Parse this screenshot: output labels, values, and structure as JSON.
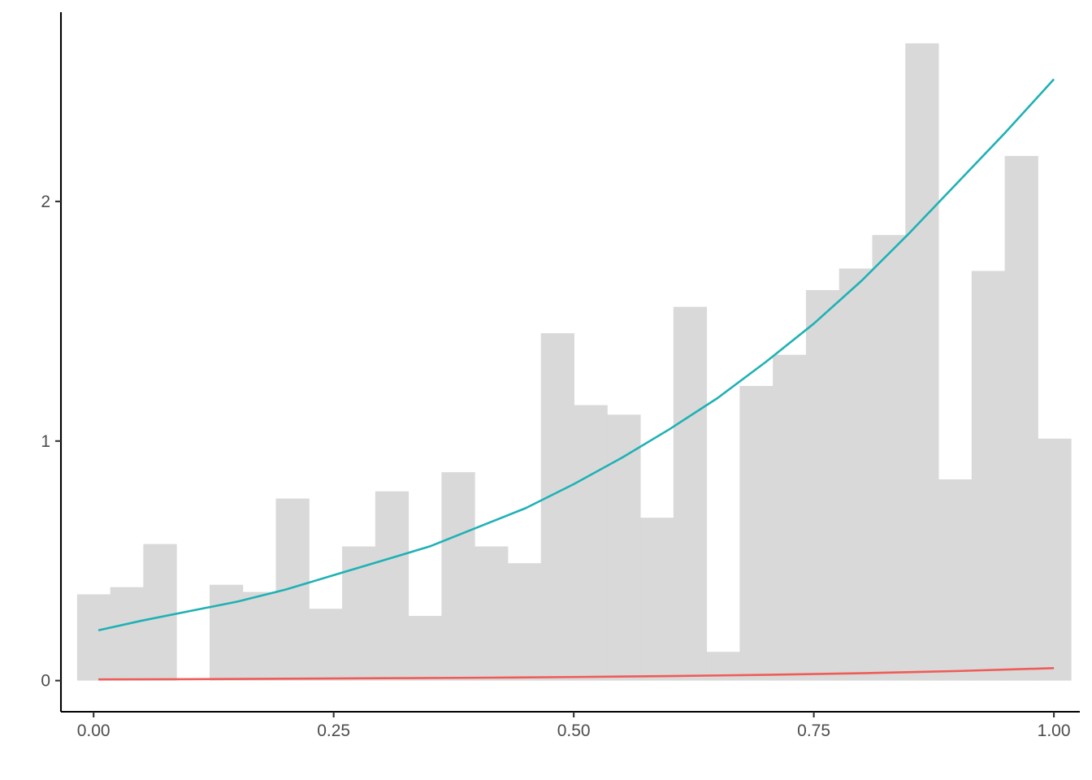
{
  "chart_data": {
    "type": "bar",
    "subtype": "histogram-with-curves",
    "title": "",
    "xlabel": "",
    "ylabel": "",
    "xlim": [
      -0.034,
      1.027
    ],
    "ylim": [
      -0.13,
      2.79
    ],
    "x_ticks": [
      {
        "value": 0.0,
        "label": "0.00"
      },
      {
        "value": 0.25,
        "label": "0.25"
      },
      {
        "value": 0.5,
        "label": "0.50"
      },
      {
        "value": 0.75,
        "label": "0.75"
      },
      {
        "value": 1.0,
        "label": "1.00"
      }
    ],
    "y_ticks": [
      {
        "value": 0,
        "label": "0"
      },
      {
        "value": 1,
        "label": "1"
      },
      {
        "value": 2,
        "label": "2"
      }
    ],
    "grid": false,
    "legend": "none",
    "bins": {
      "start": -0.0172,
      "width": 0.0345,
      "fill_color": "#d9d9d9",
      "values": [
        0.36,
        0.39,
        0.57,
        0.0,
        0.4,
        0.37,
        0.76,
        0.3,
        0.56,
        0.79,
        0.27,
        0.87,
        0.56,
        0.49,
        1.45,
        1.15,
        1.11,
        0.68,
        1.56,
        0.12,
        1.23,
        1.36,
        1.63,
        1.72,
        1.86,
        2.66,
        0.84,
        1.71,
        2.19,
        1.01
      ]
    },
    "series": [
      {
        "color": "#1fb1b4",
        "x": [
          0.005,
          0.05,
          0.1,
          0.15,
          0.2,
          0.25,
          0.3,
          0.35,
          0.4,
          0.45,
          0.5,
          0.55,
          0.6,
          0.65,
          0.7,
          0.75,
          0.8,
          0.85,
          0.9,
          0.95,
          1.0
        ],
        "y": [
          0.21,
          0.25,
          0.29,
          0.33,
          0.38,
          0.44,
          0.5,
          0.56,
          0.64,
          0.72,
          0.82,
          0.93,
          1.05,
          1.18,
          1.33,
          1.49,
          1.67,
          1.87,
          2.08,
          2.29,
          2.51
        ]
      },
      {
        "color": "#ef5c58",
        "x": [
          0.005,
          0.1,
          0.2,
          0.3,
          0.4,
          0.5,
          0.6,
          0.7,
          0.8,
          0.9,
          1.0
        ],
        "y": [
          0.005,
          0.006,
          0.008,
          0.01,
          0.012,
          0.015,
          0.019,
          0.024,
          0.031,
          0.04,
          0.052
        ]
      }
    ]
  }
}
